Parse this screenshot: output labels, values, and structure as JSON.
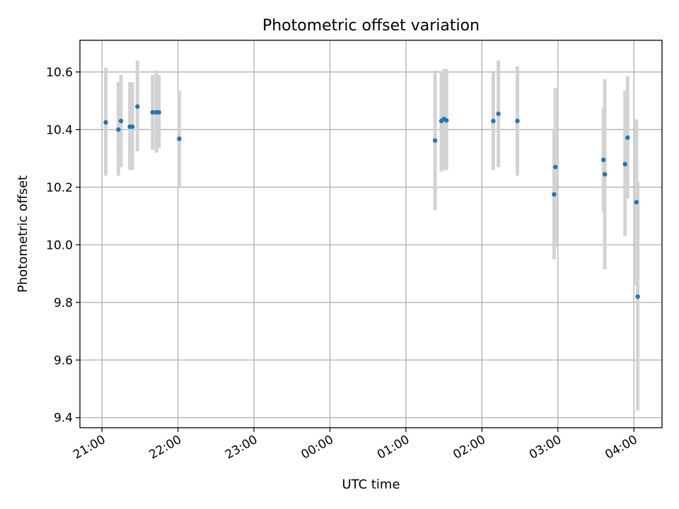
{
  "chart_data": {
    "type": "scatter",
    "title": "Photometric offset variation",
    "xlabel": "UTC time",
    "ylabel": "Photometric offset",
    "x_axis": "time",
    "x_range_hours": [
      20.71,
      28.37
    ],
    "ylim": [
      9.365,
      10.71
    ],
    "x_ticks": [
      {
        "label": "21:00",
        "hour": 21
      },
      {
        "label": "22:00",
        "hour": 22
      },
      {
        "label": "23:00",
        "hour": 23
      },
      {
        "label": "00:00",
        "hour": 24
      },
      {
        "label": "01:00",
        "hour": 25
      },
      {
        "label": "02:00",
        "hour": 26
      },
      {
        "label": "03:00",
        "hour": 27
      },
      {
        "label": "04:00",
        "hour": 28
      }
    ],
    "y_ticks": [
      {
        "label": "9.4",
        "value": 9.4
      },
      {
        "label": "9.6",
        "value": 9.6
      },
      {
        "label": "9.8",
        "value": 9.8
      },
      {
        "label": "10.0",
        "value": 10.0
      },
      {
        "label": "10.2",
        "value": 10.2
      },
      {
        "label": "10.4",
        "value": 10.4
      },
      {
        "label": "10.6",
        "value": 10.6
      }
    ],
    "grid": true,
    "colors": {
      "point": "#1f77b4",
      "errorbar": "#d3d3d3"
    },
    "points": [
      {
        "time": "21:03",
        "y": 10.425,
        "ylow": 10.24,
        "yhigh": 10.615
      },
      {
        "time": "21:13",
        "y": 10.4,
        "ylow": 10.24,
        "yhigh": 10.565
      },
      {
        "time": "21:15",
        "y": 10.43,
        "ylow": 10.27,
        "yhigh": 10.59
      },
      {
        "time": "21:22",
        "y": 10.41,
        "ylow": 10.26,
        "yhigh": 10.565
      },
      {
        "time": "21:24",
        "y": 10.41,
        "ylow": 10.26,
        "yhigh": 10.565
      },
      {
        "time": "21:28",
        "y": 10.48,
        "ylow": 10.325,
        "yhigh": 10.64
      },
      {
        "time": "21:40",
        "y": 10.46,
        "ylow": 10.33,
        "yhigh": 10.59
      },
      {
        "time": "21:43",
        "y": 10.46,
        "ylow": 10.32,
        "yhigh": 10.605
      },
      {
        "time": "21:45",
        "y": 10.46,
        "ylow": 10.335,
        "yhigh": 10.59
      },
      {
        "time": "22:01",
        "y": 10.368,
        "ylow": 10.2,
        "yhigh": 10.535
      },
      {
        "time": "01:23",
        "y": 10.362,
        "ylow": 10.12,
        "yhigh": 10.605
      },
      {
        "time": "01:28",
        "y": 10.43,
        "ylow": 10.255,
        "yhigh": 10.6
      },
      {
        "time": "01:30",
        "y": 10.437,
        "ylow": 10.26,
        "yhigh": 10.61
      },
      {
        "time": "01:32",
        "y": 10.432,
        "ylow": 10.26,
        "yhigh": 10.61
      },
      {
        "time": "02:09",
        "y": 10.43,
        "ylow": 10.26,
        "yhigh": 10.6
      },
      {
        "time": "02:13",
        "y": 10.455,
        "ylow": 10.27,
        "yhigh": 10.64
      },
      {
        "time": "02:28",
        "y": 10.43,
        "ylow": 10.24,
        "yhigh": 10.62
      },
      {
        "time": "02:57",
        "y": 10.175,
        "ylow": 9.95,
        "yhigh": 10.4
      },
      {
        "time": "02:58",
        "y": 10.27,
        "ylow": 9.99,
        "yhigh": 10.545
      },
      {
        "time": "03:36",
        "y": 10.295,
        "ylow": 10.115,
        "yhigh": 10.475
      },
      {
        "time": "03:37",
        "y": 10.245,
        "ylow": 9.915,
        "yhigh": 10.575
      },
      {
        "time": "03:53",
        "y": 10.28,
        "ylow": 10.03,
        "yhigh": 10.535
      },
      {
        "time": "03:55",
        "y": 10.372,
        "ylow": 10.16,
        "yhigh": 10.585
      },
      {
        "time": "04:02",
        "y": 10.148,
        "ylow": 9.86,
        "yhigh": 10.435
      },
      {
        "time": "04:03",
        "y": 9.82,
        "ylow": 9.425,
        "yhigh": 10.22
      }
    ]
  }
}
